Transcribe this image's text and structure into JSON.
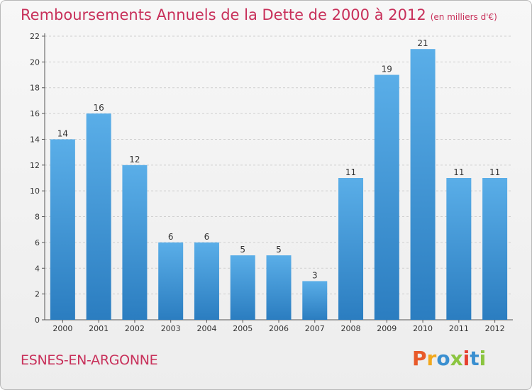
{
  "title": "Remboursements Annuels de la Dette de 2000 à 2012",
  "subtitle": "(en milliers d'€)",
  "town": "ESNES-EN-ARGONNE",
  "logo": {
    "text": "Proxiti",
    "colors": [
      "#e85a2a",
      "#f2a81d",
      "#3a8fd0",
      "#8bc540",
      "#e5402f",
      "#3a8fd0",
      "#8bc540"
    ]
  },
  "colors": {
    "bar_top": "#5aaee8",
    "bar_bottom": "#2b7dc0",
    "title": "#c8305a",
    "grid": "#cfcfcf"
  },
  "chart_data": {
    "type": "bar",
    "categories": [
      "2000",
      "2001",
      "2002",
      "2003",
      "2004",
      "2005",
      "2006",
      "2007",
      "2008",
      "2009",
      "2010",
      "2011",
      "2012"
    ],
    "values": [
      14,
      16,
      12,
      6,
      6,
      5,
      5,
      3,
      11,
      19,
      21,
      11,
      11
    ],
    "title": "Remboursements Annuels de la Dette de 2000 à 2012",
    "xlabel": "",
    "ylabel": "",
    "ylim": [
      0,
      22
    ],
    "yticks": [
      0,
      2,
      4,
      6,
      8,
      10,
      12,
      14,
      16,
      18,
      20,
      22
    ],
    "grid": true
  }
}
